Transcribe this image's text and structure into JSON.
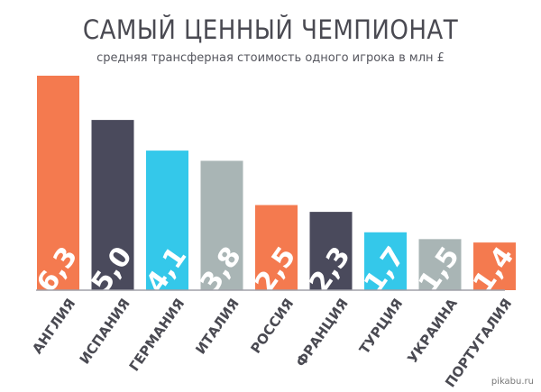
{
  "title": "САМЫЙ ЦЕННЫЙ ЧЕМПИОНАТ",
  "subtitle": "средняя трансферная стоимость одного игрока в млн £",
  "watermark": "pikabu.ru",
  "chart_data": {
    "type": "bar",
    "categories": [
      "АНГЛИЯ",
      "ИСПАНИЯ",
      "ГЕРМАНИЯ",
      "ИТАЛИЯ",
      "РОССИЯ",
      "ФРАНЦИЯ",
      "ТУРЦИЯ",
      "УКРАИНА",
      "ПОРТУГАЛИЯ"
    ],
    "values": [
      6.3,
      5.0,
      4.1,
      3.8,
      2.5,
      2.3,
      1.7,
      1.5,
      1.4
    ],
    "value_labels": [
      "6,3",
      "5,0",
      "4,1",
      "3,8",
      "2,5",
      "2,3",
      "1,7",
      "1,5",
      "1,4"
    ],
    "colors": [
      "#f47a4f",
      "#4a4a5c",
      "#34c8ea",
      "#a9b5b5",
      "#f47a4f",
      "#4a4a5c",
      "#34c8ea",
      "#a9b5b5",
      "#f47a4f"
    ],
    "ylim": [
      0,
      6.3
    ],
    "grid": false,
    "legend": "none"
  }
}
